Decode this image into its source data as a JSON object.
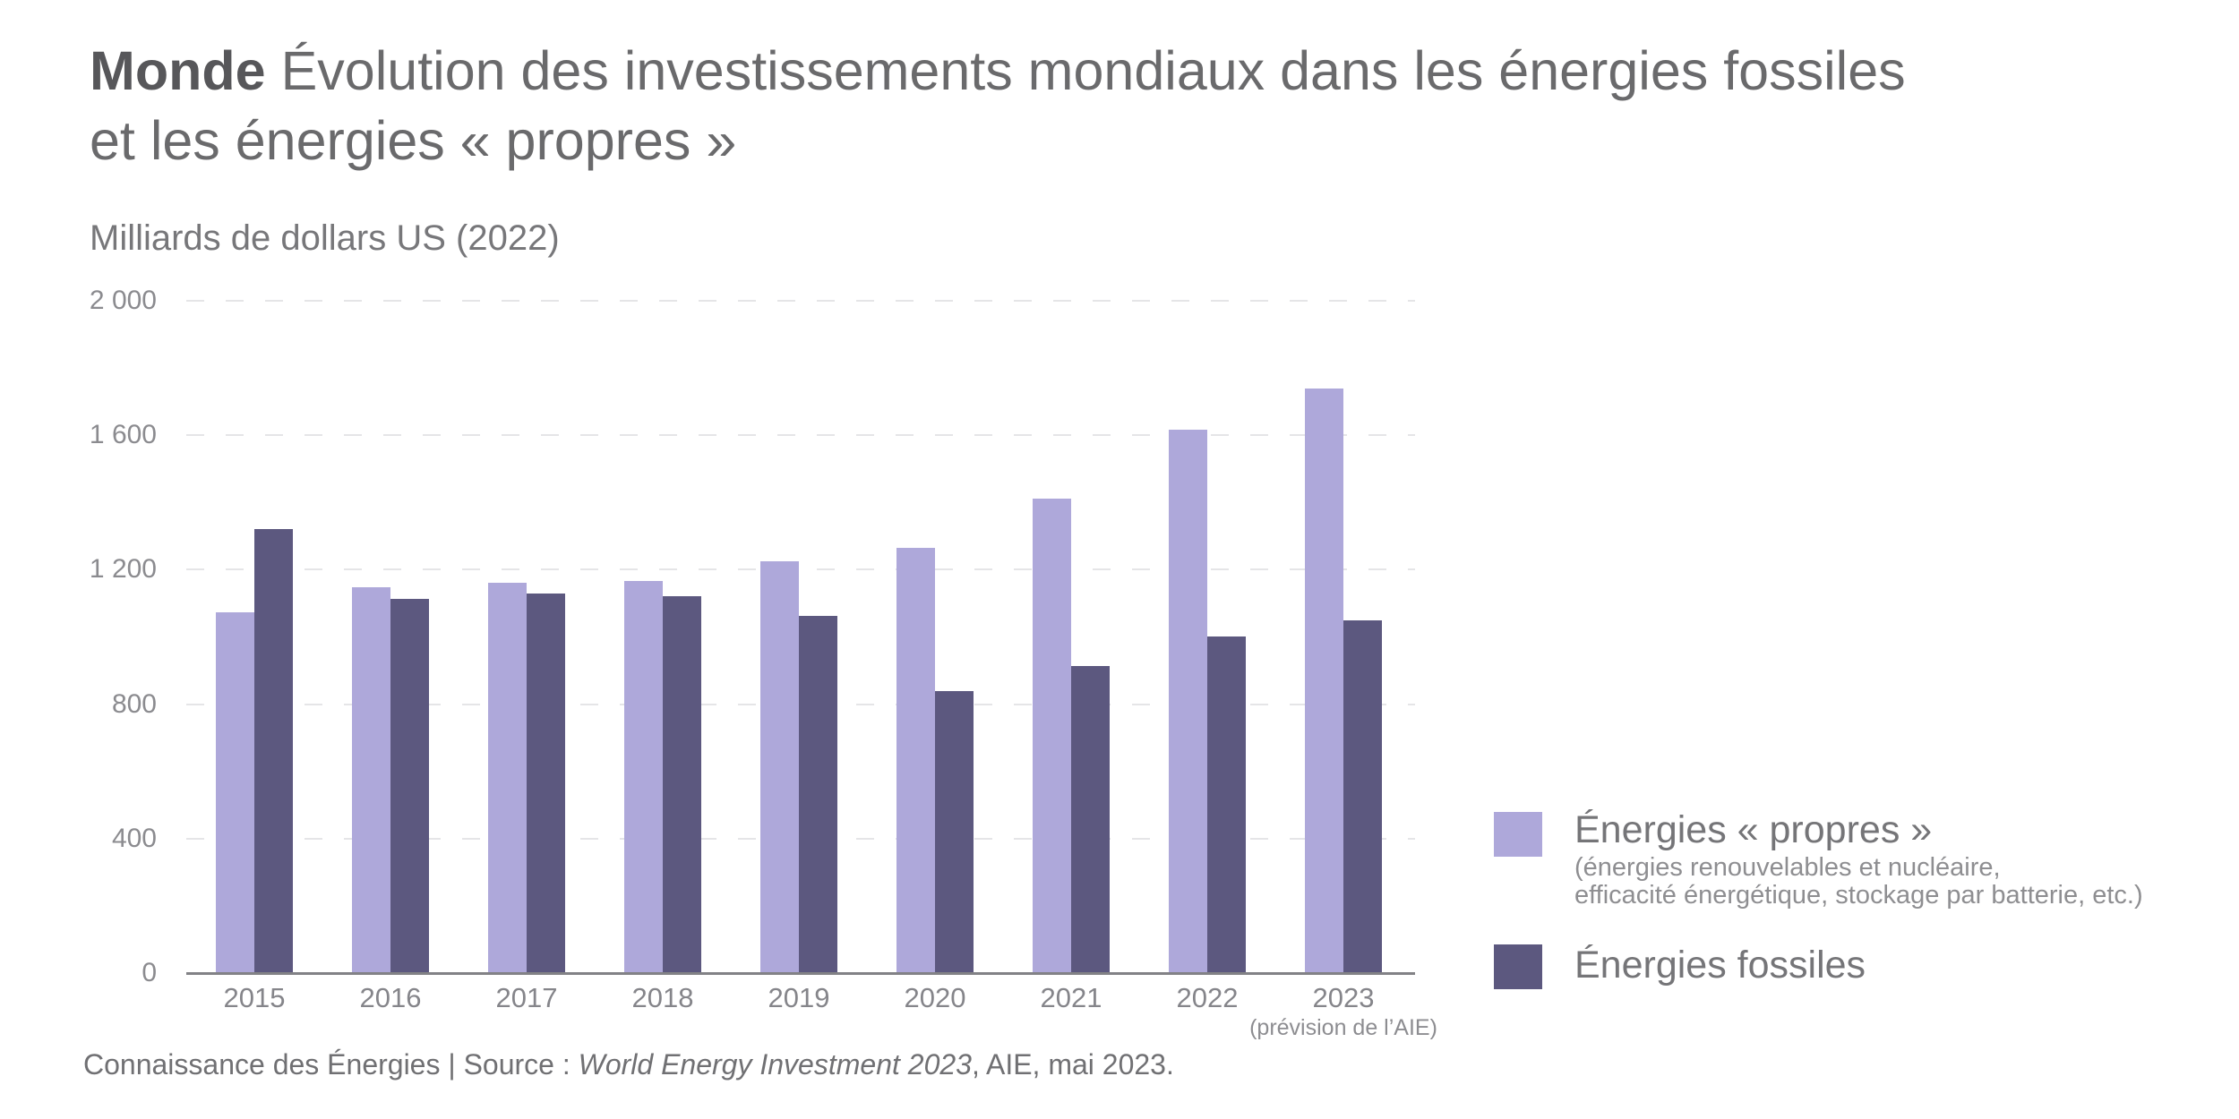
{
  "header": {
    "title_bold": "Monde",
    "title_line1": "Évolution des investissements mondiaux dans les énergies fossiles",
    "title_line2": "et les énergies « propres »"
  },
  "chart": {
    "unit_label": "Milliards de dollars US (2022)",
    "y_tick_labels": [
      "2 000",
      "1 600",
      "1 200",
      "800",
      "400",
      "0"
    ],
    "y_tick_values": [
      2000,
      1600,
      1200,
      800,
      400,
      0
    ],
    "x_note": "(prévision de l’AIE)"
  },
  "chart_data": {
    "type": "bar",
    "title": "Monde — Évolution des investissements mondiaux dans les énergies fossiles et les énergies « propres »",
    "xlabel": "",
    "ylabel": "Milliards de dollars US (2022)",
    "categories": [
      "2015",
      "2016",
      "2017",
      "2018",
      "2019",
      "2020",
      "2021",
      "2022",
      "2023"
    ],
    "series": [
      {
        "name": "Énergies « propres »",
        "color": "#aea8da",
        "values": [
          1073,
          1148,
          1160,
          1167,
          1224,
          1266,
          1412,
          1617,
          1740
        ]
      },
      {
        "name": "Énergies fossiles",
        "color": "#5c587f",
        "values": [
          1322,
          1112,
          1130,
          1121,
          1063,
          840,
          914,
          1001,
          1050
        ]
      }
    ],
    "ylim": [
      0,
      2000
    ],
    "ytick_step": 400,
    "grid": "horizontal-dashed",
    "legend_position": "right",
    "last_category_note": "(prévision de l’AIE)"
  },
  "legend": {
    "propres": {
      "label": "Énergies « propres »",
      "sub_line1": "(énergies renouvelables et nucléaire,",
      "sub_line2": "efficacité énergétique, stockage par batterie, etc.)",
      "color": "#aea8da"
    },
    "fossiles": {
      "label": "Énergies fossiles",
      "color": "#5c587f"
    }
  },
  "footer": {
    "prefix": "Connaissance des Énergies | Source : ",
    "source_italic": "World Energy Investment 2023",
    "suffix": ", AIE, mai 2023."
  }
}
